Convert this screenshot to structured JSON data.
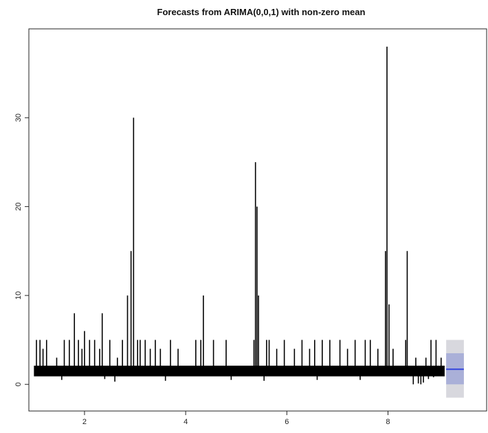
{
  "chart_data": {
    "type": "line",
    "title": "Forecasts from ARIMA(0,0,1) with non-zero mean",
    "xlabel": "",
    "ylabel": "",
    "xlim": [
      0.9,
      9.95
    ],
    "ylim": [
      -3.0,
      40.0
    ],
    "x_ticks": [
      2,
      4,
      6,
      8
    ],
    "y_ticks": [
      0,
      10,
      20,
      30
    ],
    "grid": false,
    "legend": "none",
    "series": [
      {
        "role": "observed",
        "color": "#000000",
        "x_start": 1.0,
        "x_end": 9.12,
        "baseline": 1.5,
        "spikes": [
          {
            "x": 1.05,
            "y": 5
          },
          {
            "x": 1.12,
            "y": 5
          },
          {
            "x": 1.18,
            "y": 4
          },
          {
            "x": 1.25,
            "y": 5
          },
          {
            "x": 1.45,
            "y": 3
          },
          {
            "x": 1.6,
            "y": 5
          },
          {
            "x": 1.7,
            "y": 5
          },
          {
            "x": 1.8,
            "y": 8
          },
          {
            "x": 1.88,
            "y": 5
          },
          {
            "x": 1.95,
            "y": 4
          },
          {
            "x": 2.0,
            "y": 6
          },
          {
            "x": 2.1,
            "y": 5
          },
          {
            "x": 2.2,
            "y": 5
          },
          {
            "x": 2.3,
            "y": 4
          },
          {
            "x": 2.35,
            "y": 8
          },
          {
            "x": 2.5,
            "y": 5
          },
          {
            "x": 2.65,
            "y": 3
          },
          {
            "x": 2.75,
            "y": 5
          },
          {
            "x": 2.85,
            "y": 10
          },
          {
            "x": 2.92,
            "y": 15
          },
          {
            "x": 2.97,
            "y": 30
          },
          {
            "x": 3.05,
            "y": 5
          },
          {
            "x": 3.1,
            "y": 5
          },
          {
            "x": 3.2,
            "y": 5
          },
          {
            "x": 3.3,
            "y": 4
          },
          {
            "x": 3.4,
            "y": 5
          },
          {
            "x": 3.5,
            "y": 4
          },
          {
            "x": 3.7,
            "y": 5
          },
          {
            "x": 3.85,
            "y": 4
          },
          {
            "x": 4.2,
            "y": 5
          },
          {
            "x": 4.3,
            "y": 5
          },
          {
            "x": 4.35,
            "y": 10
          },
          {
            "x": 4.55,
            "y": 5
          },
          {
            "x": 4.8,
            "y": 5
          },
          {
            "x": 5.35,
            "y": 5
          },
          {
            "x": 5.38,
            "y": 25
          },
          {
            "x": 5.41,
            "y": 20
          },
          {
            "x": 5.44,
            "y": 10
          },
          {
            "x": 5.6,
            "y": 5
          },
          {
            "x": 5.65,
            "y": 5
          },
          {
            "x": 5.8,
            "y": 4
          },
          {
            "x": 5.95,
            "y": 5
          },
          {
            "x": 6.15,
            "y": 4
          },
          {
            "x": 6.3,
            "y": 5
          },
          {
            "x": 6.45,
            "y": 4
          },
          {
            "x": 6.55,
            "y": 5
          },
          {
            "x": 6.7,
            "y": 5
          },
          {
            "x": 6.85,
            "y": 5
          },
          {
            "x": 7.05,
            "y": 5
          },
          {
            "x": 7.2,
            "y": 4
          },
          {
            "x": 7.35,
            "y": 5
          },
          {
            "x": 7.55,
            "y": 5
          },
          {
            "x": 7.65,
            "y": 5
          },
          {
            "x": 7.8,
            "y": 4
          },
          {
            "x": 7.95,
            "y": 15
          },
          {
            "x": 7.98,
            "y": 38
          },
          {
            "x": 8.02,
            "y": 9
          },
          {
            "x": 8.1,
            "y": 4
          },
          {
            "x": 8.35,
            "y": 5
          },
          {
            "x": 8.38,
            "y": 15
          },
          {
            "x": 8.55,
            "y": 3
          },
          {
            "x": 8.75,
            "y": 3
          },
          {
            "x": 8.85,
            "y": 5
          },
          {
            "x": 8.95,
            "y": 5
          },
          {
            "x": 9.05,
            "y": 3
          }
        ],
        "dips": [
          {
            "x": 1.55,
            "y": 0.5
          },
          {
            "x": 2.4,
            "y": 0.6
          },
          {
            "x": 2.6,
            "y": 0.3
          },
          {
            "x": 3.6,
            "y": 0.4
          },
          {
            "x": 4.9,
            "y": 0.5
          },
          {
            "x": 5.55,
            "y": 0.4
          },
          {
            "x": 6.6,
            "y": 0.5
          },
          {
            "x": 7.45,
            "y": 0.5
          },
          {
            "x": 8.5,
            "y": 0.0
          },
          {
            "x": 8.6,
            "y": 0.1
          },
          {
            "x": 8.65,
            "y": 0.0
          },
          {
            "x": 8.7,
            "y": 0.2
          },
          {
            "x": 8.8,
            "y": 0.6
          },
          {
            "x": 8.9,
            "y": 0.8
          }
        ]
      },
      {
        "role": "forecast",
        "color": "#3344dd",
        "x": [
          9.15,
          9.5
        ],
        "y": [
          1.7,
          1.7
        ]
      }
    ],
    "forecast_intervals": [
      {
        "level": "80%",
        "color": "#aab0d8",
        "x": [
          9.15,
          9.5
        ],
        "lower": 0.0,
        "upper": 3.5
      },
      {
        "level": "95%",
        "color": "#d8d8de",
        "x": [
          9.15,
          9.5
        ],
        "lower": -1.5,
        "upper": 5.0
      }
    ]
  }
}
